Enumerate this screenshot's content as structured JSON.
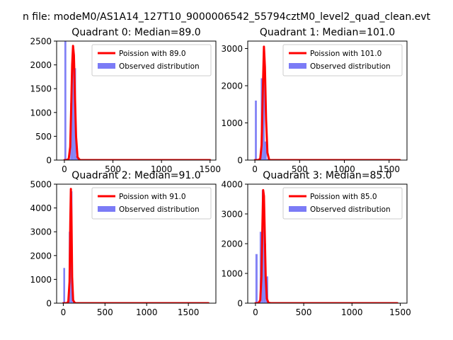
{
  "figure": {
    "suptitle": "n file: modeM0/AS1A14_127T10_9000006542_55794cztM0_level2_quad_clean.evt"
  },
  "colors": {
    "poisson": "#ff0000",
    "observed": "#7b7bf6",
    "axes": "#000000"
  },
  "chart_data": [
    {
      "type": "bar",
      "title": "Quadrant 0: Median=89.0",
      "xlim": [
        -80,
        1560
      ],
      "ylim": [
        0,
        2500
      ],
      "xticks": [
        0,
        500,
        1000,
        1500
      ],
      "yticks": [
        0,
        500,
        1000,
        1500,
        2000,
        2500
      ],
      "legend_placement": "top-right",
      "series": [
        {
          "name": "Poission with 89.0",
          "kind": "line",
          "x": [
            0,
            30,
            45,
            60,
            70,
            80,
            89,
            98,
            108,
            120,
            135,
            160,
            1500
          ],
          "y": [
            0,
            0,
            30,
            280,
            1100,
            2000,
            2400,
            2200,
            1400,
            500,
            60,
            0,
            0
          ]
        },
        {
          "name": "Observed distribution",
          "kind": "hist",
          "bins": [
            {
              "x0": 0,
              "x1": 20,
              "y": 2500
            },
            {
              "x0": 20,
              "x1": 40,
              "y": 30
            },
            {
              "x0": 40,
              "x1": 60,
              "y": 20
            },
            {
              "x0": 60,
              "x1": 80,
              "y": 1200
            },
            {
              "x0": 80,
              "x1": 100,
              "y": 2000
            },
            {
              "x0": 100,
              "x1": 120,
              "y": 1930
            },
            {
              "x0": 120,
              "x1": 140,
              "y": 90
            },
            {
              "x0": 140,
              "x1": 160,
              "y": 20
            }
          ]
        }
      ]
    },
    {
      "type": "bar",
      "title": "Quadrant 1: Median=101.0",
      "xlim": [
        -80,
        1700
      ],
      "ylim": [
        0,
        3200
      ],
      "xticks": [
        0,
        500,
        1000,
        1500
      ],
      "yticks": [
        0,
        1000,
        2000,
        3000
      ],
      "legend_placement": "top-right",
      "series": [
        {
          "name": "Poission with 101.0",
          "kind": "line",
          "x": [
            0,
            40,
            60,
            75,
            88,
            101,
            112,
            125,
            140,
            160,
            1620
          ],
          "y": [
            0,
            0,
            40,
            400,
            1800,
            3050,
            2500,
            1100,
            200,
            0,
            0
          ]
        },
        {
          "name": "Observed distribution",
          "kind": "hist",
          "bins": [
            {
              "x0": 0,
              "x1": 22,
              "y": 1600
            },
            {
              "x0": 22,
              "x1": 44,
              "y": 30
            },
            {
              "x0": 44,
              "x1": 66,
              "y": 20
            },
            {
              "x0": 66,
              "x1": 88,
              "y": 2200
            },
            {
              "x0": 88,
              "x1": 110,
              "y": 2300
            },
            {
              "x0": 110,
              "x1": 132,
              "y": 500
            },
            {
              "x0": 132,
              "x1": 154,
              "y": 30
            }
          ]
        }
      ]
    },
    {
      "type": "bar",
      "title": "Quadrant 2: Median=91.0",
      "xlim": [
        -80,
        1830
      ],
      "ylim": [
        0,
        5000
      ],
      "xticks": [
        0,
        500,
        1000,
        1500
      ],
      "yticks": [
        0,
        1000,
        2000,
        3000,
        4000,
        5000
      ],
      "legend_placement": "top-right",
      "series": [
        {
          "name": "Poission with 91.0",
          "kind": "line",
          "x": [
            0,
            40,
            60,
            75,
            84,
            91,
            98,
            106,
            118,
            140,
            1740
          ],
          "y": [
            0,
            0,
            60,
            900,
            3400,
            4800,
            3600,
            1100,
            120,
            0,
            0
          ]
        },
        {
          "name": "Observed distribution",
          "kind": "hist",
          "bins": [
            {
              "x0": 0,
              "x1": 22,
              "y": 1480
            },
            {
              "x0": 22,
              "x1": 44,
              "y": 40
            },
            {
              "x0": 44,
              "x1": 66,
              "y": 30
            },
            {
              "x0": 66,
              "x1": 88,
              "y": 3000
            },
            {
              "x0": 88,
              "x1": 110,
              "y": 4700
            },
            {
              "x0": 110,
              "x1": 132,
              "y": 60
            }
          ]
        }
      ]
    },
    {
      "type": "bar",
      "title": "Quadrant 3: Median=85.0",
      "xlim": [
        -80,
        1570
      ],
      "ylim": [
        0,
        4000
      ],
      "xticks": [
        0,
        500,
        1000,
        1500
      ],
      "yticks": [
        0,
        1000,
        2000,
        3000,
        4000
      ],
      "legend_placement": "top-right",
      "series": [
        {
          "name": "Poission with 85.0",
          "kind": "line",
          "x": [
            0,
            30,
            50,
            62,
            72,
            80,
            88,
            96,
            106,
            118,
            135,
            160,
            1470
          ],
          "y": [
            0,
            0,
            100,
            900,
            2600,
            3800,
            3600,
            2400,
            900,
            150,
            10,
            0,
            0
          ]
        },
        {
          "name": "Observed distribution",
          "kind": "hist",
          "bins": [
            {
              "x0": 0,
              "x1": 22,
              "y": 1650
            },
            {
              "x0": 22,
              "x1": 44,
              "y": 30
            },
            {
              "x0": 44,
              "x1": 66,
              "y": 2400
            },
            {
              "x0": 66,
              "x1": 88,
              "y": 3800
            },
            {
              "x0": 88,
              "x1": 110,
              "y": 2000
            },
            {
              "x0": 110,
              "x1": 132,
              "y": 900
            },
            {
              "x0": 132,
              "x1": 154,
              "y": 30
            }
          ]
        }
      ]
    }
  ]
}
